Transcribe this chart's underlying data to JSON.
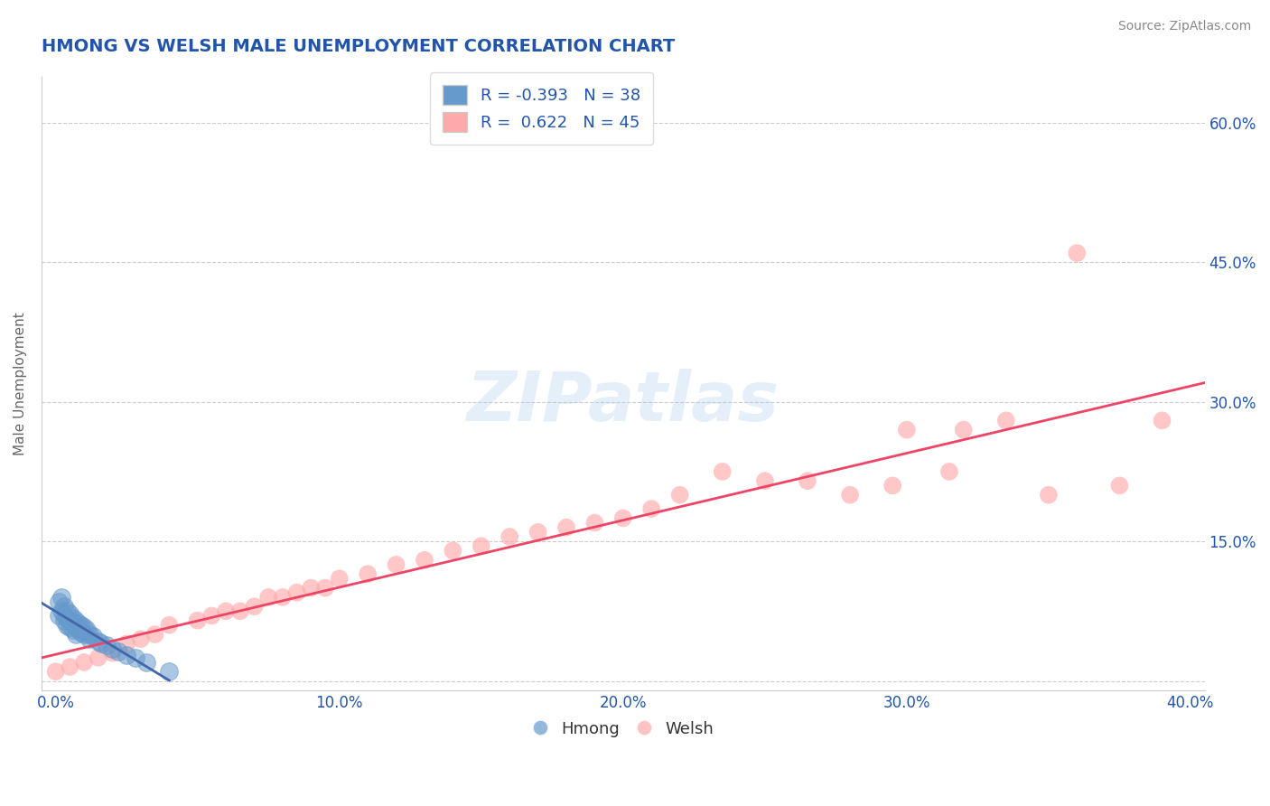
{
  "title": "HMONG VS WELSH MALE UNEMPLOYMENT CORRELATION CHART",
  "source": "Source: ZipAtlas.com",
  "ylabel": "Male Unemployment",
  "xlim": [
    -0.005,
    0.405
  ],
  "ylim": [
    -0.01,
    0.65
  ],
  "xticks": [
    0.0,
    0.1,
    0.2,
    0.3,
    0.4
  ],
  "xtick_labels": [
    "0.0%",
    "10.0%",
    "20.0%",
    "30.0%",
    "40.0%"
  ],
  "yticks": [
    0.0,
    0.15,
    0.3,
    0.45,
    0.6
  ],
  "right_ytick_labels": [
    "",
    "15.0%",
    "30.0%",
    "45.0%",
    "60.0%"
  ],
  "hmong_R": -0.393,
  "hmong_N": 38,
  "welsh_R": 0.622,
  "welsh_N": 45,
  "hmong_color": "#6699cc",
  "welsh_color": "#ffaaaa",
  "hmong_line_color": "#4466aa",
  "welsh_line_color": "#ee4466",
  "background_color": "#ffffff",
  "grid_color": "#cccccc",
  "title_color": "#2255aa",
  "axis_color": "#2255aa",
  "watermark": "ZIPatlas",
  "hmong_x": [
    0.001,
    0.001,
    0.002,
    0.002,
    0.003,
    0.003,
    0.003,
    0.004,
    0.004,
    0.004,
    0.005,
    0.005,
    0.005,
    0.006,
    0.006,
    0.006,
    0.007,
    0.007,
    0.007,
    0.008,
    0.008,
    0.009,
    0.009,
    0.01,
    0.01,
    0.011,
    0.012,
    0.012,
    0.013,
    0.015,
    0.016,
    0.018,
    0.02,
    0.022,
    0.025,
    0.028,
    0.032,
    0.04
  ],
  "hmong_y": [
    0.085,
    0.07,
    0.09,
    0.075,
    0.08,
    0.07,
    0.065,
    0.075,
    0.068,
    0.06,
    0.072,
    0.065,
    0.058,
    0.068,
    0.062,
    0.055,
    0.065,
    0.058,
    0.05,
    0.062,
    0.055,
    0.06,
    0.052,
    0.058,
    0.05,
    0.055,
    0.05,
    0.045,
    0.048,
    0.042,
    0.04,
    0.038,
    0.035,
    0.032,
    0.028,
    0.025,
    0.02,
    0.01
  ],
  "welsh_x": [
    0.0,
    0.005,
    0.01,
    0.015,
    0.02,
    0.025,
    0.03,
    0.035,
    0.04,
    0.05,
    0.055,
    0.06,
    0.065,
    0.07,
    0.075,
    0.08,
    0.085,
    0.09,
    0.095,
    0.1,
    0.11,
    0.12,
    0.13,
    0.14,
    0.15,
    0.16,
    0.17,
    0.18,
    0.19,
    0.2,
    0.21,
    0.22,
    0.235,
    0.25,
    0.265,
    0.28,
    0.295,
    0.3,
    0.315,
    0.32,
    0.335,
    0.35,
    0.36,
    0.375,
    0.39
  ],
  "welsh_y": [
    0.01,
    0.015,
    0.02,
    0.025,
    0.03,
    0.04,
    0.045,
    0.05,
    0.06,
    0.065,
    0.07,
    0.075,
    0.075,
    0.08,
    0.09,
    0.09,
    0.095,
    0.1,
    0.1,
    0.11,
    0.115,
    0.125,
    0.13,
    0.14,
    0.145,
    0.155,
    0.16,
    0.165,
    0.17,
    0.175,
    0.185,
    0.2,
    0.225,
    0.215,
    0.215,
    0.2,
    0.21,
    0.27,
    0.225,
    0.27,
    0.28,
    0.2,
    0.46,
    0.21,
    0.28
  ],
  "hmong_line_x": [
    0.0,
    0.04
  ],
  "welsh_line_x": [
    0.0,
    0.405
  ],
  "welsh_line_y": [
    0.005,
    0.365
  ]
}
